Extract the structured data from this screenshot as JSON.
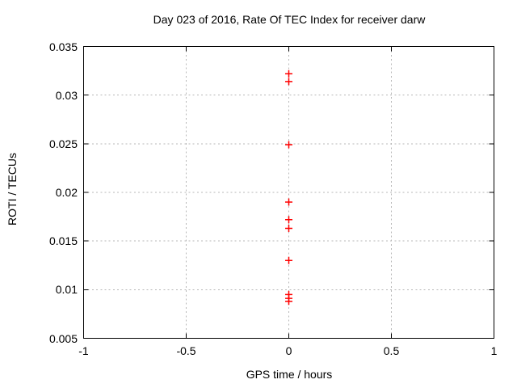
{
  "page": {
    "background": "#ffffff"
  },
  "chart_data": {
    "type": "scatter",
    "title": "Day 023 of 2016, Rate Of TEC Index for receiver darw",
    "xlabel": "GPS time / hours",
    "ylabel": "ROTI / TECUs",
    "xlim": [
      -1,
      1
    ],
    "ylim": [
      0.005,
      0.035
    ],
    "x_ticks": [
      {
        "value": -1,
        "label": "-1"
      },
      {
        "value": -0.5,
        "label": "-0.5"
      },
      {
        "value": 0,
        "label": "0"
      },
      {
        "value": 0.5,
        "label": "0.5"
      },
      {
        "value": 1,
        "label": "1"
      }
    ],
    "y_ticks": [
      {
        "value": 0.005,
        "label": "0.005"
      },
      {
        "value": 0.01,
        "label": "0.01"
      },
      {
        "value": 0.015,
        "label": "0.015"
      },
      {
        "value": 0.02,
        "label": "0.02"
      },
      {
        "value": 0.025,
        "label": "0.025"
      },
      {
        "value": 0.03,
        "label": "0.03"
      },
      {
        "value": 0.035,
        "label": "0.035"
      }
    ],
    "grid": true,
    "legend": "none",
    "series": [
      {
        "name": "ROTI",
        "marker": "plus",
        "color": "#ff0000",
        "points": [
          {
            "x": 0,
            "y": 0.0322
          },
          {
            "x": 0,
            "y": 0.0314
          },
          {
            "x": 0,
            "y": 0.0249
          },
          {
            "x": 0,
            "y": 0.019
          },
          {
            "x": 0,
            "y": 0.0172
          },
          {
            "x": 0,
            "y": 0.0163
          },
          {
            "x": 0,
            "y": 0.013
          },
          {
            "x": 0,
            "y": 0.0095
          },
          {
            "x": 0,
            "y": 0.0091
          },
          {
            "x": 0,
            "y": 0.0088
          }
        ]
      }
    ],
    "colors": {
      "background": "#ffffff",
      "axis": "#000000",
      "grid": "#b8b8b8",
      "text": "#000000",
      "marker": "#ff0000"
    }
  }
}
